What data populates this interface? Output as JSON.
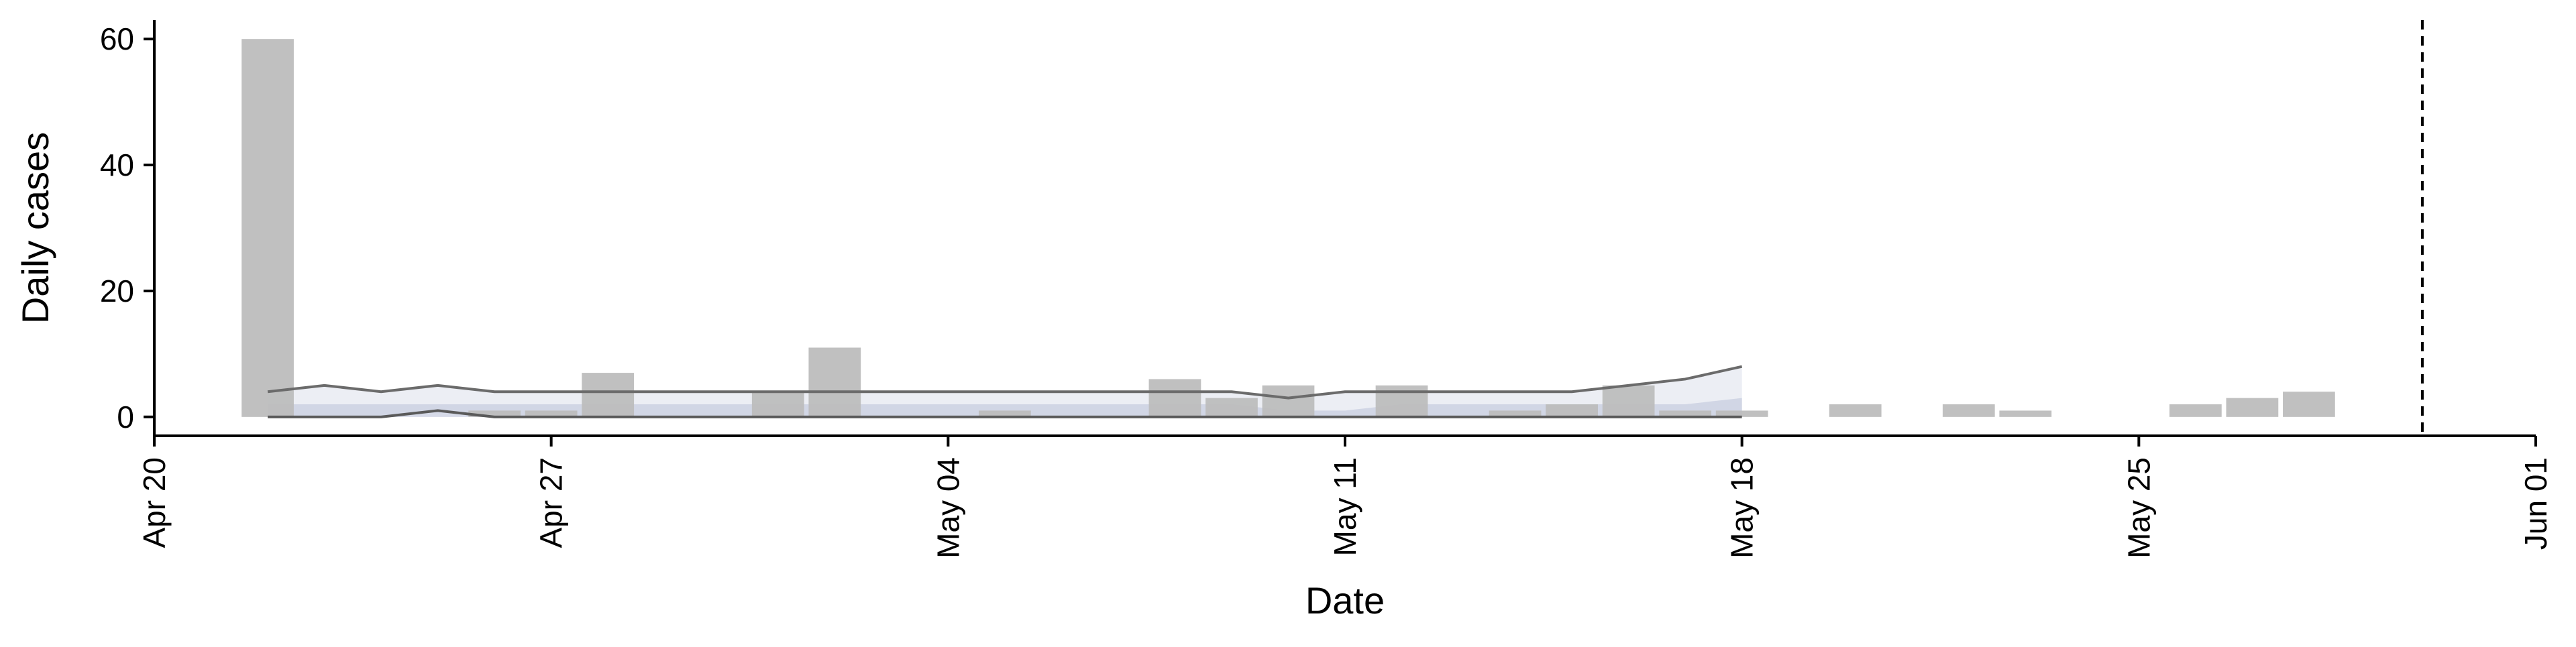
{
  "chart_data": {
    "type": "bar",
    "title": "",
    "xlabel": "Date",
    "ylabel": "Daily cases",
    "x_axis": {
      "type": "date",
      "range": [
        "2020-04-20",
        "2020-06-01"
      ],
      "ticks": [
        {
          "date": "2020-04-20",
          "label": "Apr 20"
        },
        {
          "date": "2020-04-27",
          "label": "Apr 27"
        },
        {
          "date": "2020-05-04",
          "label": "May 04"
        },
        {
          "date": "2020-05-11",
          "label": "May 11"
        },
        {
          "date": "2020-05-18",
          "label": "May 18"
        },
        {
          "date": "2020-05-25",
          "label": "May 25"
        },
        {
          "date": "2020-06-01",
          "label": "Jun 01"
        }
      ],
      "label_rotation": "vertical"
    },
    "y_axis": {
      "range": [
        -3,
        63
      ],
      "ticks": [
        0,
        20,
        40,
        60
      ]
    },
    "grid": false,
    "legend": "none",
    "bars": {
      "color": "#bdbdbd",
      "points": [
        {
          "date": "2020-04-22",
          "value": 60
        },
        {
          "date": "2020-04-26",
          "value": 1
        },
        {
          "date": "2020-04-27",
          "value": 1
        },
        {
          "date": "2020-04-28",
          "value": 7
        },
        {
          "date": "2020-05-01",
          "value": 4
        },
        {
          "date": "2020-05-02",
          "value": 11
        },
        {
          "date": "2020-05-05",
          "value": 1
        },
        {
          "date": "2020-05-08",
          "value": 6
        },
        {
          "date": "2020-05-09",
          "value": 3
        },
        {
          "date": "2020-05-10",
          "value": 5
        },
        {
          "date": "2020-05-12",
          "value": 5
        },
        {
          "date": "2020-05-14",
          "value": 1
        },
        {
          "date": "2020-05-15",
          "value": 2
        },
        {
          "date": "2020-05-16",
          "value": 5
        },
        {
          "date": "2020-05-17",
          "value": 1
        },
        {
          "date": "2020-05-18",
          "value": 1
        },
        {
          "date": "2020-05-20",
          "value": 2
        },
        {
          "date": "2020-05-22",
          "value": 2
        },
        {
          "date": "2020-05-23",
          "value": 1
        },
        {
          "date": "2020-05-26",
          "value": 2
        },
        {
          "date": "2020-05-27",
          "value": 3
        },
        {
          "date": "2020-05-28",
          "value": 4
        }
      ]
    },
    "model_bands": [
      {
        "color": "#e6e8f0",
        "dates": [
          "2020-04-22",
          "2020-04-23",
          "2020-04-24",
          "2020-04-25",
          "2020-04-26",
          "2020-04-27",
          "2020-04-28",
          "2020-04-29",
          "2020-04-30",
          "2020-05-01",
          "2020-05-02",
          "2020-05-03",
          "2020-05-04",
          "2020-05-05",
          "2020-05-06",
          "2020-05-07",
          "2020-05-08",
          "2020-05-09",
          "2020-05-10",
          "2020-05-11",
          "2020-05-12",
          "2020-05-13",
          "2020-05-14",
          "2020-05-15",
          "2020-05-16",
          "2020-05-17",
          "2020-05-18"
        ],
        "upper": [
          4,
          5,
          4,
          5,
          4,
          4,
          4,
          4,
          4,
          4,
          4,
          4,
          4,
          4,
          4,
          4,
          4,
          4,
          3,
          4,
          4,
          4,
          4,
          4,
          5,
          6,
          8
        ],
        "lower": [
          0,
          0,
          0,
          1,
          0,
          0,
          0,
          0,
          0,
          0,
          0,
          0,
          0,
          0,
          0,
          0,
          0,
          0,
          0,
          0,
          0,
          0,
          0,
          0,
          0,
          0,
          0
        ]
      },
      {
        "color": "#c8cee0",
        "dates": [
          "2020-04-22",
          "2020-04-23",
          "2020-04-24",
          "2020-04-25",
          "2020-04-26",
          "2020-04-27",
          "2020-04-28",
          "2020-04-29",
          "2020-04-30",
          "2020-05-01",
          "2020-05-02",
          "2020-05-03",
          "2020-05-04",
          "2020-05-05",
          "2020-05-06",
          "2020-05-07",
          "2020-05-08",
          "2020-05-09",
          "2020-05-10",
          "2020-05-11",
          "2020-05-12",
          "2020-05-13",
          "2020-05-14",
          "2020-05-15",
          "2020-05-16",
          "2020-05-17",
          "2020-05-18"
        ],
        "upper": [
          2,
          2,
          2,
          2,
          2,
          2,
          2,
          2,
          2,
          2,
          2,
          2,
          2,
          2,
          2,
          2,
          2,
          2,
          1,
          1,
          2,
          2,
          2,
          2,
          2,
          2,
          3
        ],
        "lower": [
          0,
          0,
          0,
          0,
          0,
          0,
          0,
          0,
          0,
          0,
          0,
          0,
          0,
          0,
          0,
          0,
          0,
          0,
          0,
          0,
          0,
          0,
          0,
          0,
          0,
          0,
          0
        ]
      }
    ],
    "model_lines": [
      {
        "color": "#6b6b6b",
        "dates": [
          "2020-04-22",
          "2020-04-23",
          "2020-04-24",
          "2020-04-25",
          "2020-04-26",
          "2020-04-27",
          "2020-04-28",
          "2020-04-29",
          "2020-04-30",
          "2020-05-01",
          "2020-05-02",
          "2020-05-03",
          "2020-05-04",
          "2020-05-05",
          "2020-05-06",
          "2020-05-07",
          "2020-05-08",
          "2020-05-09",
          "2020-05-10",
          "2020-05-11",
          "2020-05-12",
          "2020-05-13",
          "2020-05-14",
          "2020-05-15",
          "2020-05-16",
          "2020-05-17",
          "2020-05-18"
        ],
        "values": [
          4,
          5,
          4,
          5,
          4,
          4,
          4,
          4,
          4,
          4,
          4,
          4,
          4,
          4,
          4,
          4,
          4,
          4,
          3,
          4,
          4,
          4,
          4,
          4,
          5,
          6,
          8
        ]
      },
      {
        "color": "#5a5a5a",
        "dates": [
          "2020-04-22",
          "2020-04-23",
          "2020-04-24",
          "2020-04-25",
          "2020-04-26",
          "2020-04-27",
          "2020-04-28",
          "2020-04-29",
          "2020-04-30",
          "2020-05-01",
          "2020-05-02",
          "2020-05-03",
          "2020-05-04",
          "2020-05-05",
          "2020-05-06",
          "2020-05-07",
          "2020-05-08",
          "2020-05-09",
          "2020-05-10",
          "2020-05-11",
          "2020-05-12",
          "2020-05-13",
          "2020-05-14",
          "2020-05-15",
          "2020-05-16",
          "2020-05-17",
          "2020-05-18"
        ],
        "values": [
          0,
          0,
          0,
          1,
          0,
          0,
          0,
          0,
          0,
          0,
          0,
          0,
          0,
          0,
          0,
          0,
          0,
          0,
          0,
          0,
          0,
          0,
          0,
          0,
          0,
          0,
          0
        ]
      }
    ],
    "reference_line": {
      "date": "2020-05-30",
      "style": "dashed",
      "color": "#000000"
    }
  }
}
